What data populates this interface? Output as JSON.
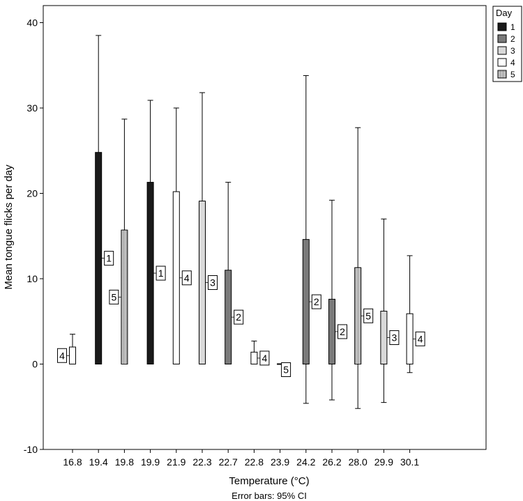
{
  "chart_data": {
    "type": "bar",
    "xlabel": "Temperature (°C)",
    "ylabel": "Mean tongue flicks per day",
    "footnote": "Error bars: 95% CI",
    "ylim": [
      -10,
      42
    ],
    "yticks": [
      -10,
      0,
      10,
      20,
      30,
      40
    ],
    "categories": [
      "16.8",
      "19.4",
      "19.8",
      "19.9",
      "21.9",
      "22.3",
      "22.7",
      "22.8",
      "23.9",
      "24.2",
      "26.2",
      "28.0",
      "29.9",
      "30.1"
    ],
    "legend": {
      "title": "Day",
      "position": "top-right",
      "entries": [
        {
          "label": "1",
          "fill": "#1a1a1a"
        },
        {
          "label": "2",
          "fill": "#7a7a7a"
        },
        {
          "label": "3",
          "fill": "#d9d9d9"
        },
        {
          "label": "4",
          "fill": "#ffffff"
        },
        {
          "label": "5",
          "fill": "pattern"
        }
      ]
    },
    "bars": [
      {
        "category": "16.8",
        "day": "4",
        "value": 2.0,
        "ci": [
          0,
          3.5
        ]
      },
      {
        "category": "19.4",
        "day": "1",
        "value": 24.8,
        "ci": [
          0,
          38.5
        ]
      },
      {
        "category": "19.8",
        "day": "5",
        "value": 15.7,
        "ci": [
          0,
          28.7
        ]
      },
      {
        "category": "19.9",
        "day": "1",
        "value": 21.3,
        "ci": [
          0,
          30.9
        ]
      },
      {
        "category": "21.9",
        "day": "4",
        "value": 20.2,
        "ci": [
          0,
          30.0
        ]
      },
      {
        "category": "22.3",
        "day": "3",
        "value": 19.1,
        "ci": [
          0,
          31.8
        ]
      },
      {
        "category": "22.7",
        "day": "2",
        "value": 11.0,
        "ci": [
          0,
          21.3
        ]
      },
      {
        "category": "22.8",
        "day": "4",
        "value": 1.4,
        "ci": [
          0,
          2.7
        ]
      },
      {
        "category": "23.9",
        "day": "5",
        "value": 0.0,
        "ci": [
          0,
          0
        ]
      },
      {
        "category": "24.2",
        "day": "2",
        "value": 14.6,
        "ci": [
          -4.6,
          33.8
        ]
      },
      {
        "category": "26.2",
        "day": "2",
        "value": 7.6,
        "ci": [
          -4.2,
          19.2
        ]
      },
      {
        "category": "28.0",
        "day": "5",
        "value": 11.3,
        "ci": [
          -5.2,
          27.7
        ]
      },
      {
        "category": "29.9",
        "day": "3",
        "value": 6.2,
        "ci": [
          -4.5,
          17.0
        ]
      },
      {
        "category": "30.1",
        "day": "4",
        "value": 5.9,
        "ci": [
          -1.0,
          12.7
        ]
      }
    ]
  }
}
